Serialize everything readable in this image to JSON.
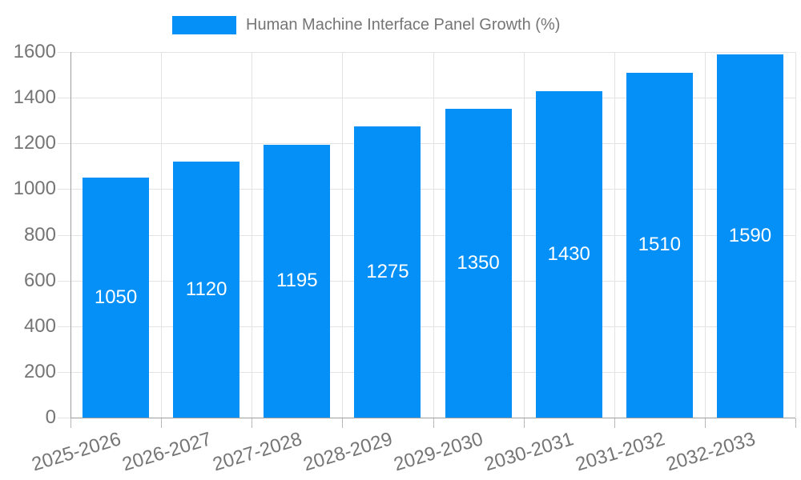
{
  "chart_data": {
    "type": "bar",
    "legend_label": "Human Machine Interface Panel Growth (%)",
    "title": "",
    "xlabel": "",
    "ylabel": "",
    "categories": [
      "2025-2026",
      "2026-2027",
      "2027-2028",
      "2028-2029",
      "2029-2030",
      "2030-2031",
      "2031-2032",
      "2032-2033"
    ],
    "values": [
      1050,
      1120,
      1195,
      1275,
      1350,
      1430,
      1510,
      1590
    ],
    "ylim": [
      0,
      1600
    ],
    "yticks": [
      0,
      200,
      400,
      600,
      800,
      1000,
      1200,
      1400,
      1600
    ],
    "grid": true,
    "legend_position": "top",
    "bar_labels_inside": true,
    "colors": {
      "bar": "#0590f7",
      "grid": "#e3e3e3",
      "axis": "#9e9e9e",
      "x_tick": "#b8b8b8",
      "text": "#757575",
      "value_label": "#ffffff",
      "background": "#ffffff"
    }
  }
}
